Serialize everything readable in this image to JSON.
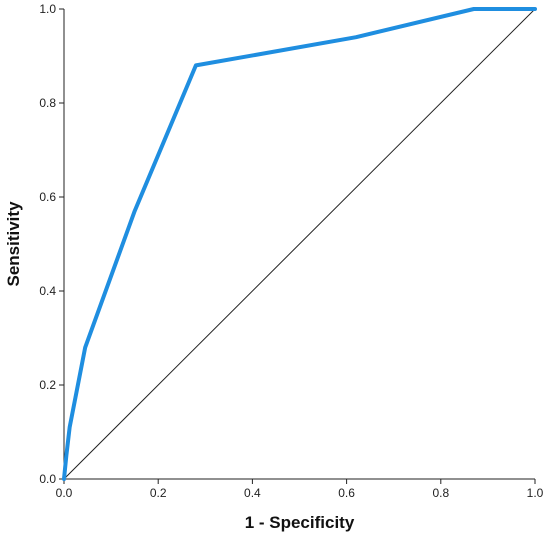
{
  "chart_data": {
    "type": "line",
    "title": "",
    "xlabel": "1 - Specificity",
    "ylabel": "Sensitivity",
    "xlim": [
      0,
      1
    ],
    "ylim": [
      0,
      1
    ],
    "grid": false,
    "x_ticks": [
      "0.0",
      "0.2",
      "0.4",
      "0.6",
      "0.8",
      "1.0"
    ],
    "y_ticks": [
      "0.0",
      "0.2",
      "0.4",
      "0.6",
      "0.8",
      "1.0"
    ],
    "series": [
      {
        "color": "#1f8ee0",
        "x": [
          0.0,
          0.005,
          0.012,
          0.045,
          0.15,
          0.28,
          0.62,
          0.87,
          1.0
        ],
        "y": [
          0.0,
          0.05,
          0.11,
          0.28,
          0.57,
          0.88,
          0.94,
          1.0,
          1.0
        ]
      },
      {
        "color": "#222222",
        "x": [
          0.0,
          1.0
        ],
        "y": [
          0.0,
          1.0
        ]
      }
    ]
  }
}
